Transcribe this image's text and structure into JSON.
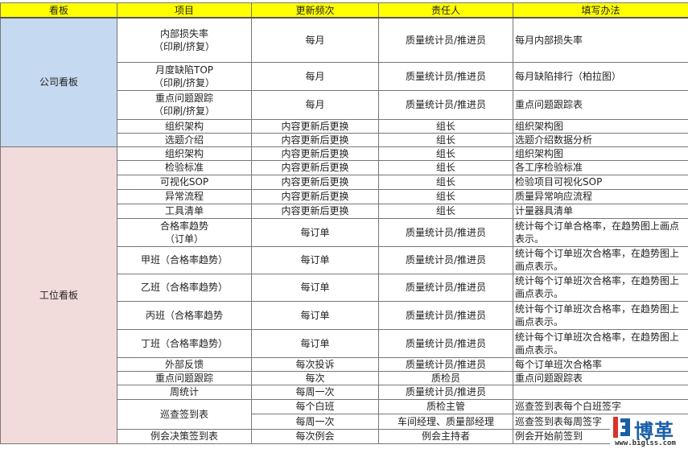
{
  "headers": [
    "看板",
    "项目",
    "更新频次",
    "责任人",
    "填写办法"
  ],
  "colors": {
    "header": "#ffff00",
    "company_board": "#c5d9f1",
    "station_board": "#f2dcdb"
  },
  "boards": [
    {
      "name": "公司看板",
      "items": [
        {
          "item": "内部损失率\n（印刷/挤复）",
          "rows": [
            {
              "freq": "每月",
              "owner": "质量统计员/推进员",
              "method": "每月内部损失率"
            }
          ]
        },
        {
          "item": "月度缺陷TOP\n（印刷/挤复）",
          "rows": [
            {
              "freq": "每月",
              "owner": "质量统计员/推进员",
              "method": "每月缺陷排行（柏拉图）"
            }
          ]
        },
        {
          "item": "重点问题跟踪\n（印刷/挤复）",
          "rows": [
            {
              "freq": "每月",
              "owner": "质量统计员/推进员",
              "method": "重点问题跟踪表"
            }
          ]
        },
        {
          "item": "组织架构",
          "rows": [
            {
              "freq": "内容更新后更换",
              "owner": "组长",
              "method": "组织架构图"
            }
          ]
        },
        {
          "item": "选题介绍",
          "rows": [
            {
              "freq": "内容更新后更换",
              "owner": "组长",
              "method": "选题介绍数据分析"
            }
          ]
        }
      ]
    },
    {
      "name": "工位看板",
      "items": [
        {
          "item": "组织架构",
          "rows": [
            {
              "freq": "内容更新后更换",
              "owner": "组长",
              "method": "组织架构图"
            }
          ]
        },
        {
          "item": "检验标准",
          "rows": [
            {
              "freq": "内容更新后更换",
              "owner": "组长",
              "method": "各工序检验标准"
            }
          ]
        },
        {
          "item": "可视化SOP",
          "rows": [
            {
              "freq": "内容更新后更换",
              "owner": "组长",
              "method": "检验项目可视化SOP"
            }
          ]
        },
        {
          "item": "异常流程",
          "rows": [
            {
              "freq": "内容更新后更换",
              "owner": "组长",
              "method": "质量异常响应流程"
            }
          ]
        },
        {
          "item": "工具清单",
          "rows": [
            {
              "freq": "内容更新后更换",
              "owner": "组长",
              "method": "计量器具清单"
            }
          ]
        },
        {
          "item": "合格率趋势\n（订单）",
          "rows": [
            {
              "freq": "每订单",
              "owner": "质量统计员/推进员",
              "method": "统计每个订单合格率，在趋势图上画点表示。"
            }
          ]
        },
        {
          "item": "甲班（合格率趋势）",
          "rows": [
            {
              "freq": "每订单",
              "owner": "质量统计员/推进员",
              "method": "统计每个订单班次合格率，在趋势图上画点表示。"
            }
          ]
        },
        {
          "item": "乙班（合格率趋势）",
          "rows": [
            {
              "freq": "每订单",
              "owner": "质量统计员/推进员",
              "method": "统计每个订单班次合格率，在趋势图上画点表示。"
            }
          ]
        },
        {
          "item": "丙班（合格率趋势",
          "rows": [
            {
              "freq": "每订单",
              "owner": "质量统计员/推进员",
              "method": "统计每个订单班次合格率，在趋势图上画点表示。"
            }
          ]
        },
        {
          "item": "丁班（合格率趋势）",
          "rows": [
            {
              "freq": "每订单",
              "owner": "质量统计员/推进员",
              "method": "统计每个订单班次合格率，在趋势图上画点表示。"
            }
          ]
        },
        {
          "item": "外部反馈",
          "rows": [
            {
              "freq": "每次投诉",
              "owner": "质量统计员/推进员",
              "method": "每个订单班次合格率"
            }
          ]
        },
        {
          "item": "重点问题跟踪",
          "rows": [
            {
              "freq": "每次",
              "owner": "质检员",
              "method": "重点问题跟踪表"
            }
          ]
        },
        {
          "item": "周统计",
          "rows": [
            {
              "freq": "每周一次",
              "owner": "质量统计员/推进员",
              "method": ""
            }
          ]
        },
        {
          "item": "巡查签到表",
          "rows": [
            {
              "freq": "每个白班",
              "owner": "质检主管",
              "method": "巡查签到表每个白班签字"
            },
            {
              "freq": "每周一次",
              "owner": "车间经理、质量部经理",
              "method": "巡查签到表每周签字"
            }
          ]
        },
        {
          "item": "例会决策签到表",
          "rows": [
            {
              "freq": "每次例会",
              "owner": "例会主持者",
              "method": "例会开始前签到"
            }
          ]
        }
      ]
    }
  ],
  "watermark": {
    "brand": "博革",
    "url": "www.biglss.com"
  }
}
